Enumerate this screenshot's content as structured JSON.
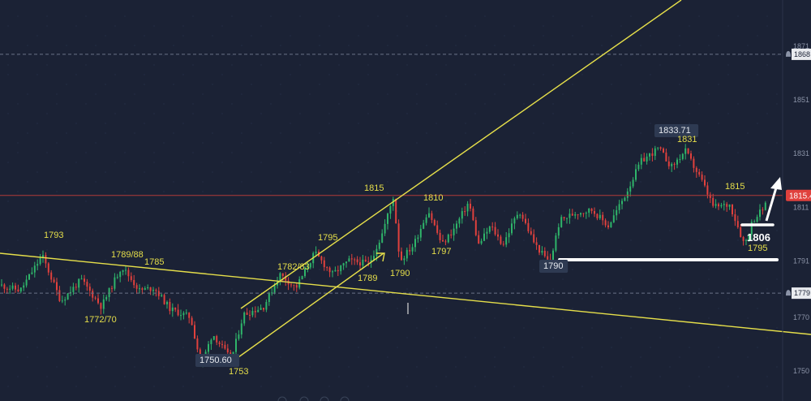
{
  "chart_data": {
    "type": "candlestick",
    "colors": {
      "background": "#1b2235",
      "up": "#2fb56a",
      "down": "#e0413d",
      "trendline": "#e6df4a",
      "annotation_text": "#e6df4a",
      "callout_bg": "#2e3a52",
      "current_price_line": "#b23a3a",
      "current_price_badge": "#e0413d",
      "white_marks": "#ffffff",
      "dashed_line": "#6b7388",
      "axis_text": "#8b93a7"
    },
    "y_axis": {
      "side": "right",
      "ylim": [
        1742,
        1880
      ],
      "ticks": [
        "1871",
        "1851",
        "1831",
        "1811",
        "1791",
        "1770",
        "1750"
      ],
      "alerts": [
        "1868",
        "1779"
      ]
    },
    "current_price": "1815.4",
    "swing_labels": [
      {
        "text": "1793",
        "value": 1793
      },
      {
        "text": "1789/88",
        "value": 1789
      },
      {
        "text": "1785",
        "value": 1785
      },
      {
        "text": "1772/70",
        "value": 1772
      },
      {
        "text": "1750.60",
        "value": 1750.6,
        "callout": true
      },
      {
        "text": "1753",
        "value": 1753
      },
      {
        "text": "1795",
        "value": 1795
      },
      {
        "text": "1782/83",
        "value": 1782
      },
      {
        "text": "1789",
        "value": 1789
      },
      {
        "text": "1815",
        "value": 1815
      },
      {
        "text": "1790",
        "value": 1790
      },
      {
        "text": "1810",
        "value": 1810
      },
      {
        "text": "1797",
        "value": 1797
      },
      {
        "text": "1790",
        "value": 1790,
        "callout": true
      },
      {
        "text": "1833.71",
        "value": 1833.71,
        "callout": true
      },
      {
        "text": "1831",
        "value": 1831
      },
      {
        "text": "1815",
        "value": 1815
      },
      {
        "text": "1795",
        "value": 1795
      }
    ],
    "target_label": "1806"
  }
}
